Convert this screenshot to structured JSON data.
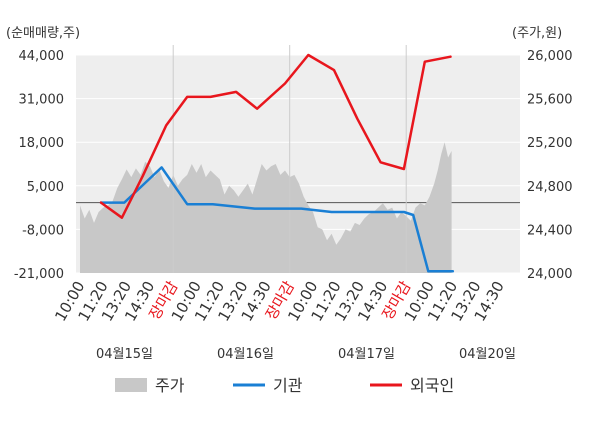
{
  "chart_data": {
    "type": "line",
    "left_axis": {
      "unit_label": "(순매매량,주)",
      "ticks": [
        44000,
        31000,
        18000,
        5000,
        -8000,
        -21000
      ],
      "tick_labels": [
        "44,000",
        "31,000",
        "18,000",
        "5,000",
        "-8,000",
        "-21,000"
      ],
      "ylim": [
        -21000,
        44000
      ]
    },
    "right_axis": {
      "unit_label": "(주가,원)",
      "ticks": [
        26000,
        25600,
        25200,
        24800,
        24400,
        24000
      ],
      "tick_labels": [
        "26,000",
        "25,600",
        "25,200",
        "24,800",
        "24,400",
        "24,000"
      ],
      "ylim": [
        24000,
        26000
      ]
    },
    "x_tick_labels": [
      {
        "text": "10:00",
        "close": false
      },
      {
        "text": "11:20",
        "close": false
      },
      {
        "text": "13:20",
        "close": false
      },
      {
        "text": "14:30",
        "close": false
      },
      {
        "text": "장마감",
        "close": true
      },
      {
        "text": "10:00",
        "close": false
      },
      {
        "text": "11:20",
        "close": false
      },
      {
        "text": "13:20",
        "close": false
      },
      {
        "text": "14:30",
        "close": false
      },
      {
        "text": "장마감",
        "close": true
      },
      {
        "text": "10:00",
        "close": false
      },
      {
        "text": "11:20",
        "close": false
      },
      {
        "text": "13:20",
        "close": false
      },
      {
        "text": "14:30",
        "close": false
      },
      {
        "text": "장마감",
        "close": true
      },
      {
        "text": "10:00",
        "close": false
      },
      {
        "text": "11:20",
        "close": false
      },
      {
        "text": "13:20",
        "close": false
      },
      {
        "text": "14:30",
        "close": false
      }
    ],
    "dates": [
      "04월15일",
      "04월16일",
      "04월17일",
      "04월20일"
    ],
    "day_dividers": [
      4,
      9,
      14
    ],
    "legend": [
      {
        "name": "주가",
        "kind": "area",
        "color": "#c8c8c8"
      },
      {
        "name": "기관",
        "kind": "line",
        "color": "#1a7fd4"
      },
      {
        "name": "외국인",
        "kind": "line",
        "color": "#e8161d"
      }
    ],
    "series": [
      {
        "name": "기관",
        "axis": "left",
        "color": "#1a7fd4",
        "points": [
          [
            0.9,
            0
          ],
          [
            1.9,
            0
          ],
          [
            3.5,
            10500
          ],
          [
            4.6,
            -500
          ],
          [
            5.7,
            -500
          ],
          [
            7.5,
            -1800
          ],
          [
            9.5,
            -1800
          ],
          [
            10.8,
            -2800
          ],
          [
            13.9,
            -2800
          ],
          [
            14.3,
            -3700
          ],
          [
            14.95,
            -20500
          ],
          [
            16.0,
            -20500
          ]
        ]
      },
      {
        "name": "외국인",
        "axis": "left",
        "color": "#e8161d",
        "points": [
          [
            0.9,
            0
          ],
          [
            1.8,
            -4500
          ],
          [
            2.7,
            8000
          ],
          [
            3.7,
            23000
          ],
          [
            4.6,
            31500
          ],
          [
            5.6,
            31500
          ],
          [
            6.7,
            33000
          ],
          [
            7.6,
            28000
          ],
          [
            8.8,
            35500
          ],
          [
            9.8,
            44000
          ],
          [
            10.9,
            39500
          ],
          [
            11.9,
            25000
          ],
          [
            12.9,
            12000
          ],
          [
            13.9,
            10000
          ],
          [
            14.8,
            42000
          ],
          [
            15.9,
            43500
          ]
        ]
      },
      {
        "name": "주가",
        "axis": "right",
        "color": "#c8c8c8",
        "points": [
          [
            0.0,
            24620
          ],
          [
            0.2,
            24500
          ],
          [
            0.4,
            24580
          ],
          [
            0.6,
            24460
          ],
          [
            0.8,
            24560
          ],
          [
            1.0,
            24600
          ],
          [
            1.2,
            24620
          ],
          [
            1.4,
            24660
          ],
          [
            1.6,
            24780
          ],
          [
            1.8,
            24860
          ],
          [
            2.0,
            24950
          ],
          [
            2.2,
            24880
          ],
          [
            2.4,
            24960
          ],
          [
            2.6,
            24900
          ],
          [
            2.8,
            25020
          ],
          [
            3.0,
            24980
          ],
          [
            3.2,
            24880
          ],
          [
            3.4,
            24950
          ],
          [
            3.6,
            24840
          ],
          [
            3.8,
            24780
          ],
          [
            4.0,
            24900
          ],
          [
            4.2,
            24800
          ],
          [
            4.4,
            24860
          ],
          [
            4.6,
            24900
          ],
          [
            4.8,
            25000
          ],
          [
            5.0,
            24920
          ],
          [
            5.2,
            25000
          ],
          [
            5.4,
            24880
          ],
          [
            5.6,
            24940
          ],
          [
            5.8,
            24900
          ],
          [
            6.0,
            24860
          ],
          [
            6.2,
            24720
          ],
          [
            6.4,
            24800
          ],
          [
            6.6,
            24760
          ],
          [
            6.8,
            24700
          ],
          [
            7.0,
            24760
          ],
          [
            7.2,
            24820
          ],
          [
            7.4,
            24720
          ],
          [
            7.6,
            24860
          ],
          [
            7.8,
            25000
          ],
          [
            8.0,
            24940
          ],
          [
            8.2,
            24980
          ],
          [
            8.4,
            25000
          ],
          [
            8.6,
            24900
          ],
          [
            8.8,
            24940
          ],
          [
            9.0,
            24880
          ],
          [
            9.2,
            24900
          ],
          [
            9.4,
            24820
          ],
          [
            9.6,
            24700
          ],
          [
            9.8,
            24620
          ],
          [
            10.0,
            24560
          ],
          [
            10.2,
            24420
          ],
          [
            10.4,
            24400
          ],
          [
            10.6,
            24300
          ],
          [
            10.8,
            24360
          ],
          [
            11.0,
            24260
          ],
          [
            11.2,
            24320
          ],
          [
            11.4,
            24400
          ],
          [
            11.6,
            24380
          ],
          [
            11.8,
            24460
          ],
          [
            12.0,
            24440
          ],
          [
            12.2,
            24500
          ],
          [
            12.4,
            24540
          ],
          [
            12.6,
            24560
          ],
          [
            12.8,
            24600
          ],
          [
            13.0,
            24640
          ],
          [
            13.2,
            24580
          ],
          [
            13.4,
            24600
          ],
          [
            13.6,
            24500
          ],
          [
            13.8,
            24560
          ],
          [
            14.0,
            24520
          ],
          [
            14.2,
            24480
          ],
          [
            14.4,
            24600
          ],
          [
            14.6,
            24640
          ],
          [
            14.8,
            24620
          ],
          [
            15.0,
            24700
          ],
          [
            15.2,
            24820
          ],
          [
            15.35,
            24940
          ],
          [
            15.5,
            25090
          ],
          [
            15.65,
            25200
          ],
          [
            15.8,
            25060
          ],
          [
            15.95,
            25120
          ]
        ]
      }
    ]
  }
}
